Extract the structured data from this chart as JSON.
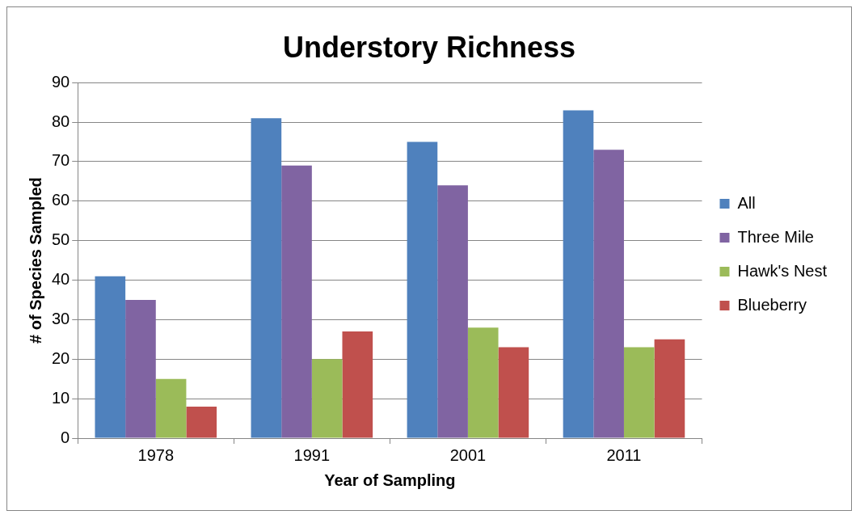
{
  "chart_data": {
    "type": "bar",
    "title": "Understory Richness",
    "xlabel": "Year of Sampling",
    "ylabel": "# of Species Sampled",
    "categories": [
      "1978",
      "1991",
      "2001",
      "2011"
    ],
    "series": [
      {
        "name": "All",
        "color": "#4f81bd",
        "values": [
          41,
          81,
          75,
          83
        ]
      },
      {
        "name": "Three Mile",
        "color": "#8064a2",
        "values": [
          35,
          69,
          64,
          73
        ]
      },
      {
        "name": "Hawk's Nest",
        "color": "#9bbb59",
        "values": [
          15,
          20,
          28,
          23
        ]
      },
      {
        "name": "Blueberry",
        "color": "#c0504d",
        "values": [
          8,
          27,
          23,
          25
        ]
      }
    ],
    "ylim": [
      0,
      90
    ],
    "yticks": [
      0,
      10,
      20,
      30,
      40,
      50,
      60,
      70,
      80,
      90
    ],
    "grid": "y",
    "legend": "right"
  }
}
